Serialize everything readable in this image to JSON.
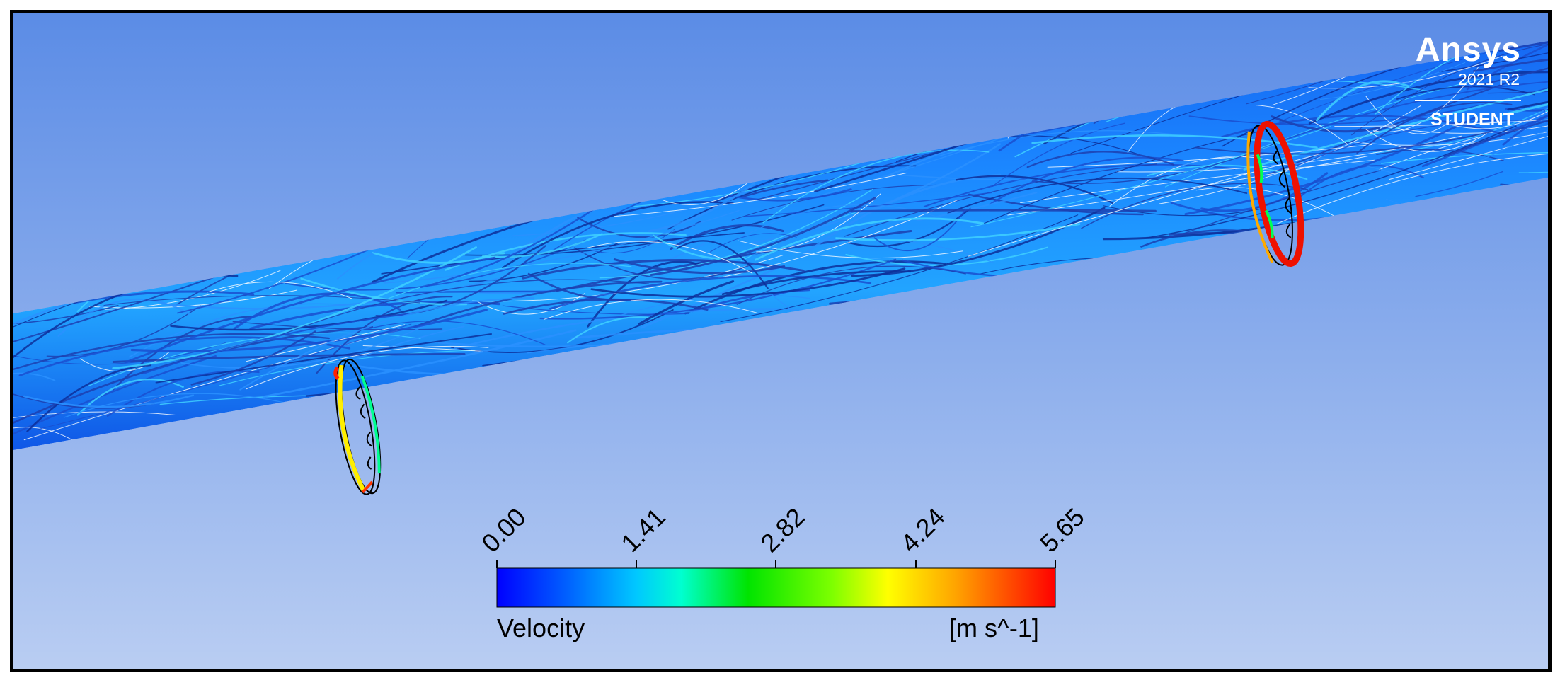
{
  "logo": {
    "brand": "Ansys",
    "version": "2021 R2",
    "edition": "STUDENT"
  },
  "legend": {
    "title": "Velocity",
    "unit": "[m s^-1]",
    "ticks": [
      "0.00",
      "1.41",
      "2.82",
      "4.24",
      "5.65"
    ],
    "colormap": [
      "#0000ff",
      "#0055ff",
      "#00aaff",
      "#00ffff",
      "#00ff80",
      "#00e400",
      "#80ff00",
      "#ffff00",
      "#ffaa00",
      "#ff5500",
      "#ff0000"
    ]
  },
  "colors": {
    "background_top": "#5b8ce6",
    "background_bottom": "#b9cdf2",
    "pipe_base": "#1a7bff",
    "pipe_light": "#2bb7ff",
    "streamline_dark": "#1c3fb0"
  }
}
